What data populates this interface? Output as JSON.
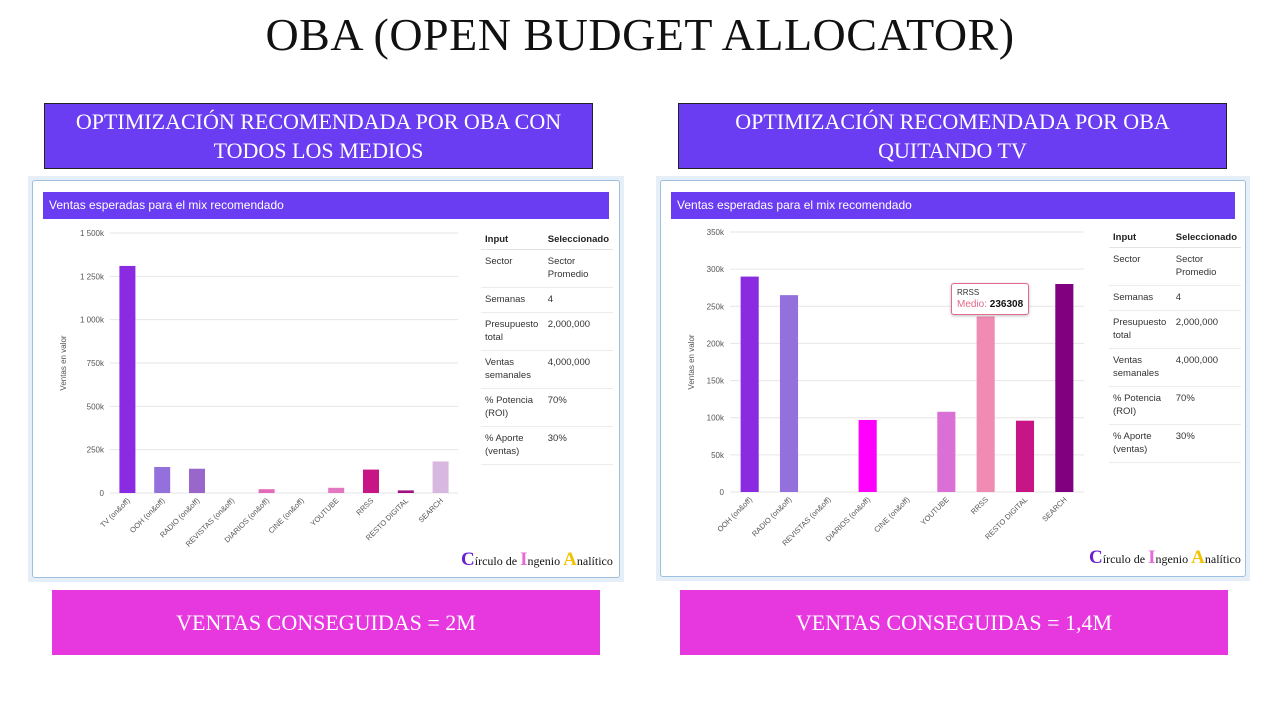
{
  "title": "OBA (OPEN BUDGET ALLOCATOR)",
  "left": {
    "heading": "OPTIMIZACIÓN RECOMENDADA POR OBA CON TODOS LOS MEDIOS",
    "panel_title": "Ventas esperadas para el mix recomendado",
    "result": "VENTAS CONSEGUIDAS = 2M"
  },
  "right": {
    "heading": "OPTIMIZACIÓN RECOMENDADA POR OBA QUITANDO TV",
    "panel_title": "Ventas esperadas para el mix recomendado",
    "result": "VENTAS CONSEGUIDAS = 1,4M",
    "tooltip": {
      "category": "RRSS",
      "label": "Medio:",
      "value": "236308"
    }
  },
  "table": {
    "headers": [
      "Input",
      "Seleccionado"
    ],
    "rows": [
      [
        "Sector",
        "Sector Promedio"
      ],
      [
        "Semanas",
        "4"
      ],
      [
        "Presupuesto total",
        "2,000,000"
      ],
      [
        "Ventas semanales",
        "4,000,000"
      ],
      [
        "% Potencia (ROI)",
        "70%"
      ],
      [
        "% Aporte (ventas)",
        "30%"
      ]
    ]
  },
  "brand": {
    "c1": "C",
    "t1": "írculo de ",
    "c2": "I",
    "t2": "ngenio ",
    "c3": "A",
    "t3": "nalítico"
  },
  "chart_data": [
    {
      "type": "bar",
      "ylabel": "Ventas en valor",
      "ylim": [
        0,
        1500000
      ],
      "yticks": [
        0,
        250000,
        500000,
        750000,
        1000000,
        1250000,
        1500000
      ],
      "ytick_labels": [
        "0",
        "250k",
        "500k",
        "750k",
        "1 000k",
        "1 250k",
        "1 500k"
      ],
      "categories": [
        "TV (on&off)",
        "OOH (on&off)",
        "RADIO (on&off)",
        "REVISTAS (on&off)",
        "DIARIOS (on&off)",
        "CINE (on&off)",
        "YOUTUBE",
        "RRSS",
        "RESTO DIGITAL",
        "SEARCH"
      ],
      "values": [
        1310000,
        150000,
        140000,
        0,
        22000,
        0,
        30000,
        135000,
        15000,
        182000
      ],
      "colors": [
        "#8a2be2",
        "#9370db",
        "#9966cc",
        "#ba55d3",
        "#e36ab8",
        "#d070d0",
        "#e377c2",
        "#c71585",
        "#a01080",
        "#d8b8e0"
      ]
    },
    {
      "type": "bar",
      "ylabel": "Ventas en valor",
      "ylim": [
        0,
        350000
      ],
      "yticks": [
        0,
        50000,
        100000,
        150000,
        200000,
        250000,
        300000,
        350000
      ],
      "ytick_labels": [
        "0",
        "50k",
        "100k",
        "150k",
        "200k",
        "250k",
        "300k",
        "350k"
      ],
      "categories": [
        "OOH (on&off)",
        "RADIO (on&off)",
        "REVISTAS (on&off)",
        "DIARIOS (on&off)",
        "CINE (on&off)",
        "YOUTUBE",
        "RRSS",
        "RESTO DIGITAL",
        "SEARCH"
      ],
      "values": [
        290000,
        265000,
        0,
        97000,
        0,
        108000,
        236308,
        96000,
        280000
      ],
      "colors": [
        "#8a2be2",
        "#9370db",
        "#9966cc",
        "#ff00ff",
        "#d070d0",
        "#da70d6",
        "#f08cb4",
        "#c71585",
        "#800080"
      ]
    }
  ]
}
